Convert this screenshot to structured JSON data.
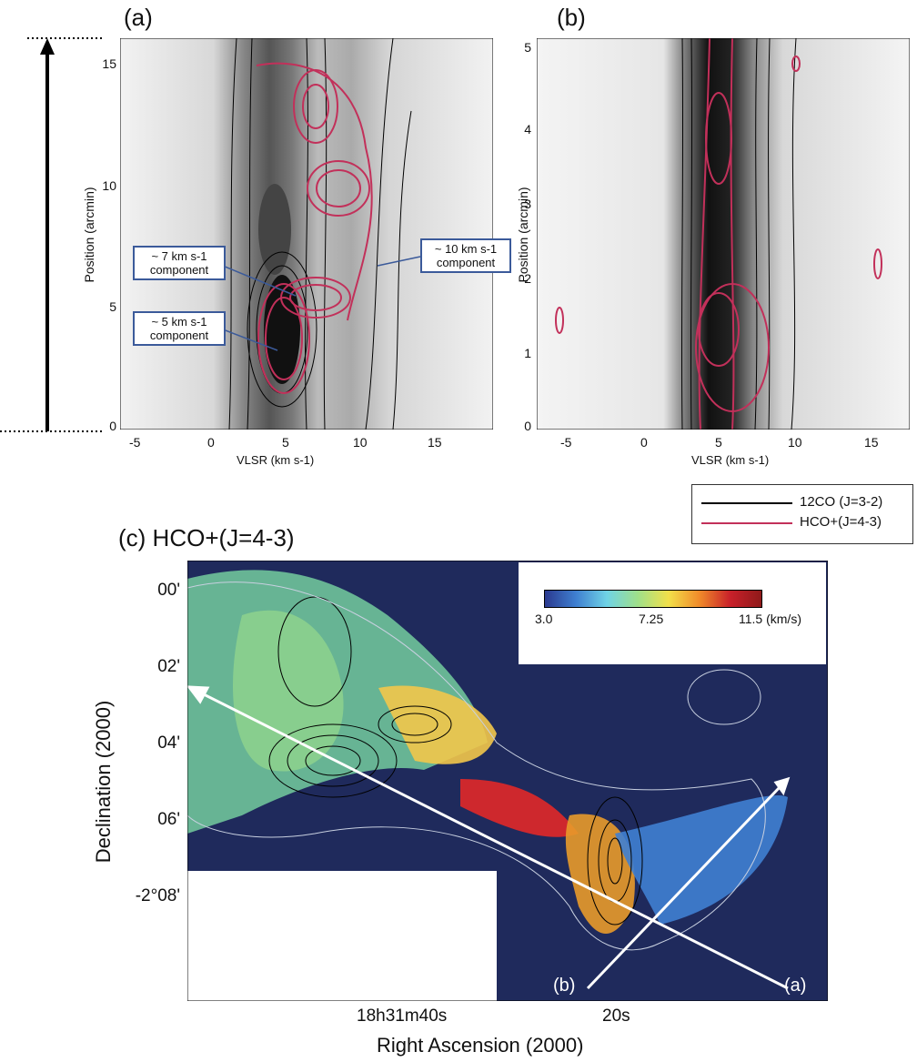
{
  "panels": {
    "a": {
      "label": "(a)",
      "y_axis_label": "Position (arcmin)",
      "x_axis_label": "VLSR (km s-1)",
      "x_ticks": [
        "-5",
        "0",
        "5",
        "10",
        "15"
      ],
      "y_ticks": [
        "0",
        "5",
        "10",
        "15"
      ],
      "callouts": [
        {
          "line1": "~ 7 km s-1",
          "line2": "component"
        },
        {
          "line1": "~ 10 km s-1",
          "line2": "component"
        },
        {
          "line1": "~ 5 km s-1",
          "line2": "component"
        }
      ]
    },
    "b": {
      "label": "(b)",
      "y_axis_label": "Position (arcmin)",
      "x_axis_label": "VLSR (km s-1)",
      "x_ticks": [
        "-5",
        "0",
        "5",
        "10",
        "15"
      ],
      "y_ticks": [
        "0",
        "1",
        "2",
        "3",
        "4",
        "5"
      ]
    },
    "c": {
      "label": "(c) HCO+(J=4-3)",
      "y_axis_label": "Declination (2000)",
      "x_axis_label": "Right Ascension (2000)",
      "dec_ticks": [
        "00'",
        "02'",
        "04'",
        "06'",
        "-2°08'"
      ],
      "ra_ticks": [
        "18h31m40s",
        "20s"
      ],
      "arrow_labels": [
        "(b)",
        "(a)"
      ],
      "colorbar": {
        "min": "3.0",
        "mid": "7.25",
        "max": "11.5 (km/s)",
        "colors": [
          "#2b3a8f",
          "#3f7fd1",
          "#6fd3e6",
          "#9fe08a",
          "#f2e04a",
          "#f08a2a",
          "#c8202a",
          "#8f1a1a"
        ]
      },
      "background_color": "#1f2a5c"
    }
  },
  "legend": {
    "items": [
      {
        "label": "12CO (J=3-2)",
        "color": "#000000"
      },
      {
        "label": "HCO+(J=4-3)",
        "color": "#c2305a"
      }
    ]
  }
}
